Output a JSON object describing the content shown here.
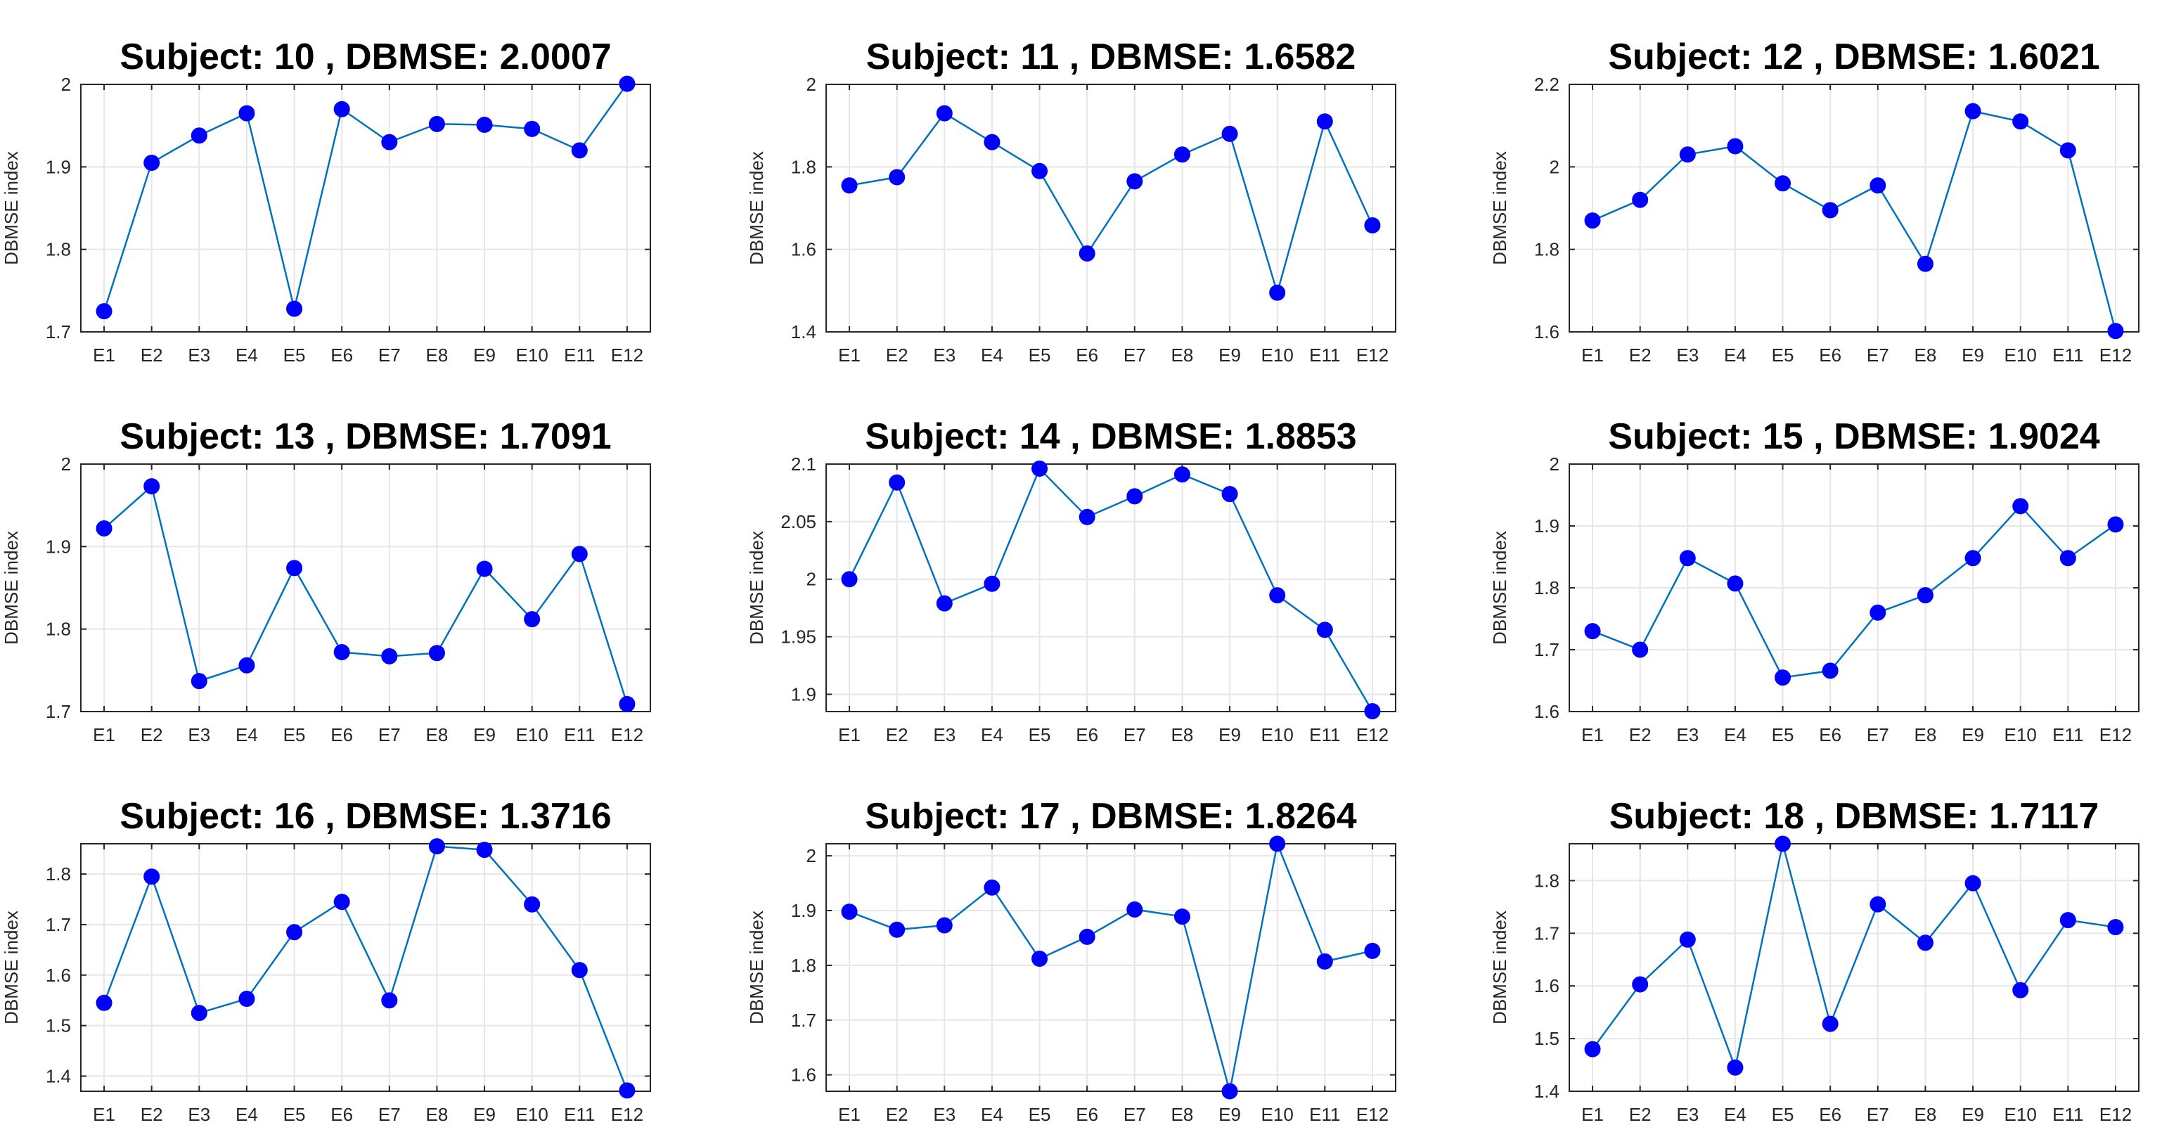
{
  "colors": {
    "line": "#0072BD",
    "marker": "#0000FF",
    "grid": "#e6e6e6",
    "axes": "#262626"
  },
  "chart_data": [
    {
      "type": "line",
      "title": "Subject: 10 , DBMSE: 2.0007",
      "xlabel": "",
      "ylabel": "DBMSE index",
      "categories": [
        "E1",
        "E2",
        "E3",
        "E4",
        "E5",
        "E6",
        "E7",
        "E8",
        "E9",
        "E10",
        "E11",
        "E12"
      ],
      "values": [
        1.725,
        1.905,
        1.938,
        1.965,
        1.728,
        1.97,
        1.93,
        1.952,
        1.951,
        1.946,
        1.92,
        2.0007
      ],
      "ylim": [
        1.7,
        2.0
      ],
      "yticks": [
        1.7,
        1.8,
        1.9,
        2.0
      ],
      "ytick_labels": [
        "1.7",
        "1.8",
        "1.9",
        "2"
      ],
      "grid": true
    },
    {
      "type": "line",
      "title": "Subject: 11 , DBMSE: 1.6582",
      "xlabel": "",
      "ylabel": "DBMSE index",
      "categories": [
        "E1",
        "E2",
        "E3",
        "E4",
        "E5",
        "E6",
        "E7",
        "E8",
        "E9",
        "E10",
        "E11",
        "E12"
      ],
      "values": [
        1.755,
        1.775,
        1.93,
        1.86,
        1.79,
        1.59,
        1.765,
        1.83,
        1.88,
        1.495,
        1.91,
        1.6582
      ],
      "ylim": [
        1.4,
        2.0
      ],
      "yticks": [
        1.4,
        1.6,
        1.8,
        2.0
      ],
      "ytick_labels": [
        "1.4",
        "1.6",
        "1.8",
        "2"
      ],
      "grid": true
    },
    {
      "type": "line",
      "title": "Subject: 12 , DBMSE: 1.6021",
      "xlabel": "",
      "ylabel": "DBMSE index",
      "categories": [
        "E1",
        "E2",
        "E3",
        "E4",
        "E5",
        "E6",
        "E7",
        "E8",
        "E9",
        "E10",
        "E11",
        "E12"
      ],
      "values": [
        1.87,
        1.92,
        2.03,
        2.05,
        1.96,
        1.895,
        1.955,
        1.765,
        2.135,
        2.11,
        2.04,
        1.6021
      ],
      "ylim": [
        1.6,
        2.2
      ],
      "yticks": [
        1.6,
        1.8,
        2.0,
        2.2
      ],
      "ytick_labels": [
        "1.6",
        "1.8",
        "2",
        "2.2"
      ],
      "grid": true
    },
    {
      "type": "line",
      "title": "Subject: 13 , DBMSE: 1.7091",
      "xlabel": "",
      "ylabel": "DBMSE index",
      "categories": [
        "E1",
        "E2",
        "E3",
        "E4",
        "E5",
        "E6",
        "E7",
        "E8",
        "E9",
        "E10",
        "E11",
        "E12"
      ],
      "values": [
        1.922,
        1.973,
        1.737,
        1.756,
        1.874,
        1.772,
        1.767,
        1.771,
        1.873,
        1.812,
        1.891,
        1.7091
      ],
      "ylim": [
        1.7,
        2.0
      ],
      "yticks": [
        1.7,
        1.8,
        1.9,
        2.0
      ],
      "ytick_labels": [
        "1.7",
        "1.8",
        "1.9",
        "2"
      ],
      "grid": true
    },
    {
      "type": "line",
      "title": "Subject: 14 , DBMSE: 1.8853",
      "xlabel": "",
      "ylabel": "DBMSE index",
      "categories": [
        "E1",
        "E2",
        "E3",
        "E4",
        "E5",
        "E6",
        "E7",
        "E8",
        "E9",
        "E10",
        "E11",
        "E12"
      ],
      "values": [
        2.0,
        2.084,
        1.979,
        1.996,
        2.096,
        2.054,
        2.072,
        2.091,
        2.074,
        1.986,
        1.956,
        1.8853
      ],
      "ylim": [
        1.885,
        2.1
      ],
      "yticks": [
        1.9,
        1.95,
        2.0,
        2.05,
        2.1
      ],
      "ytick_labels": [
        "1.9",
        "1.95",
        "2",
        "2.05",
        "2.1"
      ],
      "grid": true
    },
    {
      "type": "line",
      "title": "Subject: 15 , DBMSE: 1.9024",
      "xlabel": "",
      "ylabel": "DBMSE index",
      "categories": [
        "E1",
        "E2",
        "E3",
        "E4",
        "E5",
        "E6",
        "E7",
        "E8",
        "E9",
        "E10",
        "E11",
        "E12"
      ],
      "values": [
        1.73,
        1.7,
        1.848,
        1.807,
        1.655,
        1.666,
        1.76,
        1.788,
        1.848,
        1.932,
        1.848,
        1.9024
      ],
      "ylim": [
        1.6,
        2.0
      ],
      "yticks": [
        1.6,
        1.7,
        1.8,
        1.9,
        2.0
      ],
      "ytick_labels": [
        "1.6",
        "1.7",
        "1.8",
        "1.9",
        "2"
      ],
      "grid": true
    },
    {
      "type": "line",
      "title": "Subject: 16 , DBMSE: 1.3716",
      "xlabel": "",
      "ylabel": "DBMSE index",
      "categories": [
        "E1",
        "E2",
        "E3",
        "E4",
        "E5",
        "E6",
        "E7",
        "E8",
        "E9",
        "E10",
        "E11",
        "E12"
      ],
      "values": [
        1.545,
        1.795,
        1.525,
        1.553,
        1.685,
        1.745,
        1.55,
        1.855,
        1.848,
        1.74,
        1.61,
        1.3716
      ],
      "ylim": [
        1.37,
        1.86
      ],
      "yticks": [
        1.4,
        1.5,
        1.6,
        1.7,
        1.8
      ],
      "ytick_labels": [
        "1.4",
        "1.5",
        "1.6",
        "1.7",
        "1.8"
      ],
      "grid": true
    },
    {
      "type": "line",
      "title": "Subject: 17 , DBMSE: 1.8264",
      "xlabel": "",
      "ylabel": "DBMSE index",
      "categories": [
        "E1",
        "E2",
        "E3",
        "E4",
        "E5",
        "E6",
        "E7",
        "E8",
        "E9",
        "E10",
        "E11",
        "E12"
      ],
      "values": [
        1.898,
        1.865,
        1.873,
        1.942,
        1.812,
        1.852,
        1.902,
        1.889,
        1.57,
        2.022,
        1.807,
        1.8264
      ],
      "ylim": [
        1.57,
        2.022
      ],
      "yticks": [
        1.6,
        1.7,
        1.8,
        1.9,
        2.0
      ],
      "ytick_labels": [
        "1.6",
        "1.7",
        "1.8",
        "1.9",
        "2"
      ],
      "grid": true
    },
    {
      "type": "line",
      "title": "Subject: 18 , DBMSE: 1.7117",
      "xlabel": "",
      "ylabel": "DBMSE index",
      "categories": [
        "E1",
        "E2",
        "E3",
        "E4",
        "E5",
        "E6",
        "E7",
        "E8",
        "E9",
        "E10",
        "E11",
        "E12"
      ],
      "values": [
        1.48,
        1.603,
        1.688,
        1.445,
        1.87,
        1.528,
        1.755,
        1.682,
        1.795,
        1.592,
        1.725,
        1.7117
      ],
      "ylim": [
        1.4,
        1.87
      ],
      "yticks": [
        1.4,
        1.5,
        1.6,
        1.7,
        1.8
      ],
      "ytick_labels": [
        "1.4",
        "1.5",
        "1.6",
        "1.7",
        "1.8"
      ],
      "grid": true
    }
  ]
}
